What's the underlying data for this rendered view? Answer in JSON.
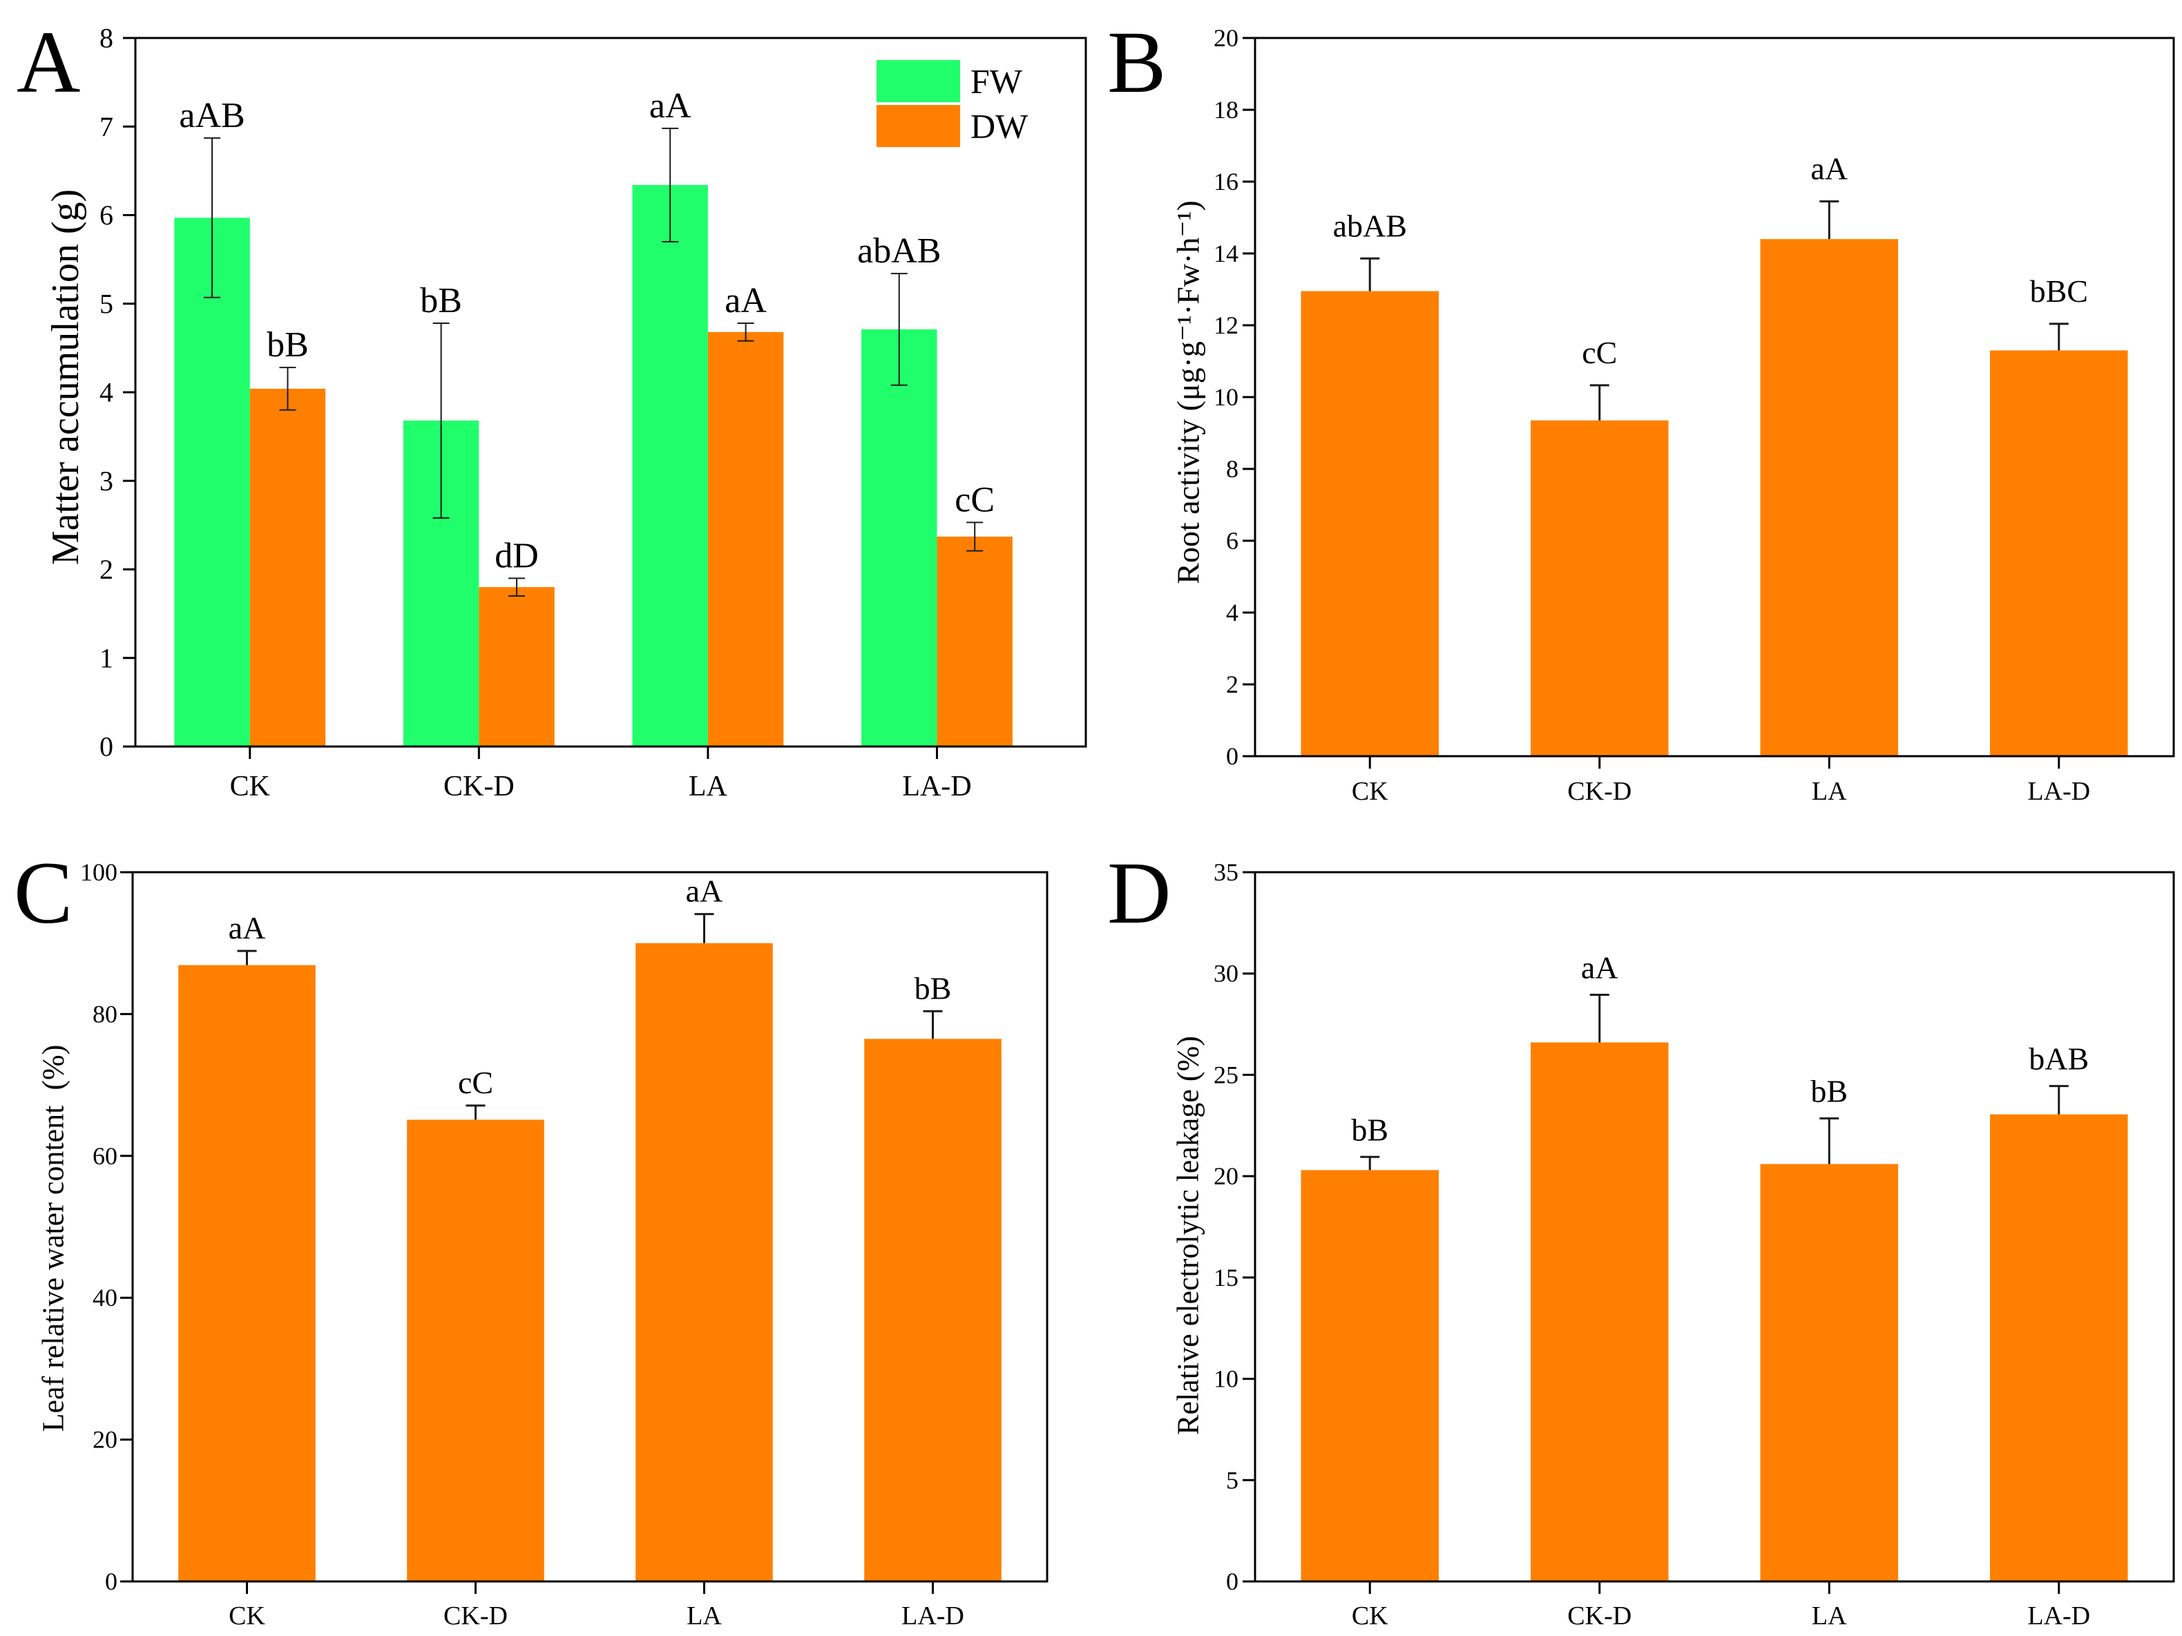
{
  "chart_data": [
    {
      "panel": "A",
      "type": "bar",
      "categories": [
        "CK",
        "CK-D",
        "LA",
        "LA-D"
      ],
      "ylabel": "Matter accumulation (g)",
      "ylim": [
        0,
        8
      ],
      "yticks": [
        0,
        1,
        2,
        3,
        4,
        5,
        6,
        7,
        8
      ],
      "grid": false,
      "legend": "top-right",
      "error_direction": "both",
      "series": [
        {
          "name": "FW",
          "color": "#20FF6B",
          "values": [
            5.97,
            3.68,
            6.34,
            4.71
          ],
          "errors": [
            0.9,
            1.1,
            0.64,
            0.63
          ],
          "labels": [
            "aAB",
            "bB",
            "aA",
            "abAB"
          ]
        },
        {
          "name": "DW",
          "color": "#FF8000",
          "values": [
            4.04,
            1.8,
            4.68,
            2.37
          ],
          "errors": [
            0.24,
            0.1,
            0.1,
            0.16
          ],
          "labels": [
            "bB",
            "dD",
            "aA",
            "cC"
          ]
        }
      ]
    },
    {
      "panel": "B",
      "type": "bar",
      "categories": [
        "CK",
        "CK-D",
        "LA",
        "LA-D"
      ],
      "ylabel": "Root activity (μg·g⁻¹·Fw·h⁻¹)",
      "ylim": [
        0,
        20
      ],
      "yticks": [
        0,
        2,
        4,
        6,
        8,
        10,
        12,
        14,
        16,
        18,
        20
      ],
      "grid": false,
      "error_direction": "up",
      "series": [
        {
          "color": "#FF8000",
          "values": [
            12.95,
            9.35,
            14.4,
            11.3
          ],
          "errors": [
            0.91,
            0.98,
            1.05,
            0.74
          ],
          "labels": [
            "abAB",
            "cC",
            "aA",
            "bBC"
          ]
        }
      ]
    },
    {
      "panel": "C",
      "type": "bar",
      "categories": [
        "CK",
        "CK-D",
        "LA",
        "LA-D"
      ],
      "ylabel": "Leaf relative water content  (%)",
      "ylim": [
        0,
        100
      ],
      "yticks": [
        0,
        20,
        40,
        60,
        80,
        100
      ],
      "grid": false,
      "error_direction": "up",
      "series": [
        {
          "color": "#FF8000",
          "values": [
            86.9,
            65.1,
            90.0,
            76.5
          ],
          "errors": [
            2.0,
            2.0,
            4.1,
            3.9
          ],
          "labels": [
            "aA",
            "cC",
            "aA",
            "bB"
          ]
        }
      ]
    },
    {
      "panel": "D",
      "type": "bar",
      "categories": [
        "CK",
        "CK-D",
        "LA",
        "LA-D"
      ],
      "ylabel": "Relative electrolytic leakage (%)",
      "ylim": [
        0,
        35
      ],
      "yticks": [
        0,
        5,
        10,
        15,
        20,
        25,
        30,
        35
      ],
      "grid": false,
      "error_direction": "up",
      "series": [
        {
          "color": "#FF8000",
          "values": [
            20.3,
            26.6,
            20.6,
            23.05
          ],
          "errors": [
            0.65,
            2.35,
            2.25,
            1.4
          ],
          "labels": [
            "bB",
            "aA",
            "bB",
            "bAB"
          ]
        }
      ]
    }
  ]
}
